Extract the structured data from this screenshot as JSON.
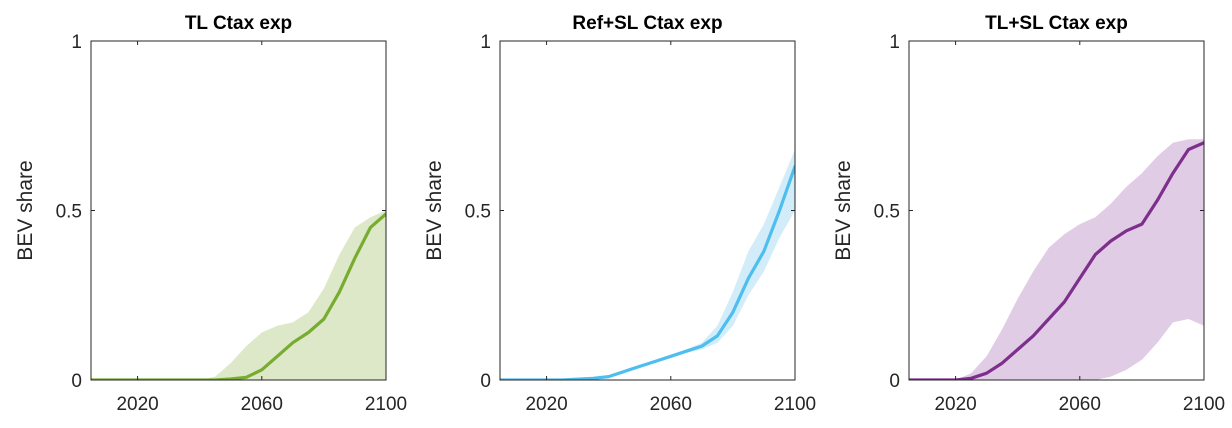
{
  "chart_data": [
    {
      "type": "line",
      "title": "TL Ctax exp",
      "xlabel": "",
      "ylabel": "BEV share",
      "xlim": [
        2005,
        2100
      ],
      "ylim": [
        0,
        1
      ],
      "xticks": [
        2020,
        2060,
        2100
      ],
      "yticks": [
        0,
        0.5,
        1
      ],
      "ytick_labels": [
        "0",
        "0.5",
        "1"
      ],
      "grid": false,
      "colors": {
        "line": "#77AC30",
        "band": "#DCE8C8"
      },
      "series": [
        {
          "x": [
            2005,
            2030,
            2040,
            2045,
            2050,
            2055,
            2060,
            2065,
            2070,
            2075,
            2080,
            2085,
            2090,
            2095,
            2100
          ],
          "values": [
            0,
            0,
            0,
            0,
            0.003,
            0.008,
            0.03,
            0.07,
            0.11,
            0.14,
            0.18,
            0.26,
            0.36,
            0.45,
            0.49
          ],
          "lower": [
            0,
            0,
            0,
            0,
            0,
            0,
            0,
            0,
            0,
            0,
            0,
            0,
            0,
            0,
            0
          ],
          "upper": [
            0,
            0,
            0,
            0.01,
            0.05,
            0.1,
            0.14,
            0.16,
            0.17,
            0.2,
            0.27,
            0.37,
            0.45,
            0.48,
            0.5
          ]
        }
      ]
    },
    {
      "type": "line",
      "title": "Ref+SL Ctax exp",
      "xlabel": "",
      "ylabel": "BEV share",
      "xlim": [
        2005,
        2100
      ],
      "ylim": [
        0,
        1
      ],
      "xticks": [
        2020,
        2060,
        2100
      ],
      "yticks": [
        0,
        0.5,
        1
      ],
      "ytick_labels": [
        "0",
        "0.5",
        "1"
      ],
      "grid": false,
      "colors": {
        "line": "#4DBEEE",
        "band": "#D2EDF9"
      },
      "series": [
        {
          "x": [
            2005,
            2025,
            2035,
            2040,
            2045,
            2050,
            2055,
            2060,
            2065,
            2070,
            2075,
            2080,
            2085,
            2090,
            2095,
            2100
          ],
          "values": [
            0,
            0,
            0.005,
            0.01,
            0.025,
            0.04,
            0.055,
            0.07,
            0.085,
            0.1,
            0.13,
            0.2,
            0.3,
            0.38,
            0.5,
            0.63
          ],
          "lower": [
            0,
            0,
            0.005,
            0.01,
            0.025,
            0.04,
            0.055,
            0.07,
            0.08,
            0.09,
            0.11,
            0.16,
            0.25,
            0.32,
            0.42,
            0.5
          ],
          "upper": [
            0,
            0,
            0.005,
            0.01,
            0.025,
            0.04,
            0.055,
            0.07,
            0.09,
            0.11,
            0.16,
            0.26,
            0.38,
            0.46,
            0.57,
            0.68
          ]
        }
      ]
    },
    {
      "type": "line",
      "title": "TL+SL Ctax exp",
      "xlabel": "",
      "ylabel": "BEV share",
      "xlim": [
        2005,
        2100
      ],
      "ylim": [
        0,
        1
      ],
      "xticks": [
        2020,
        2060,
        2100
      ],
      "yticks": [
        0,
        0.5,
        1
      ],
      "ytick_labels": [
        "0",
        "0.5",
        "1"
      ],
      "grid": false,
      "colors": {
        "line": "#7E2F8E",
        "band": "#E0CCE4"
      },
      "series": [
        {
          "x": [
            2005,
            2020,
            2025,
            2030,
            2035,
            2040,
            2045,
            2050,
            2055,
            2060,
            2065,
            2070,
            2075,
            2080,
            2085,
            2090,
            2095,
            2100
          ],
          "values": [
            0,
            0,
            0.005,
            0.02,
            0.05,
            0.09,
            0.13,
            0.18,
            0.23,
            0.3,
            0.37,
            0.41,
            0.44,
            0.46,
            0.53,
            0.61,
            0.68,
            0.7
          ],
          "lower": [
            0,
            0,
            0,
            0,
            0,
            0,
            0,
            0,
            0,
            0,
            0,
            0.01,
            0.03,
            0.06,
            0.11,
            0.17,
            0.18,
            0.16
          ],
          "upper": [
            0,
            0,
            0.02,
            0.07,
            0.15,
            0.24,
            0.32,
            0.39,
            0.43,
            0.46,
            0.48,
            0.52,
            0.57,
            0.61,
            0.66,
            0.7,
            0.71,
            0.71
          ]
        }
      ]
    }
  ]
}
